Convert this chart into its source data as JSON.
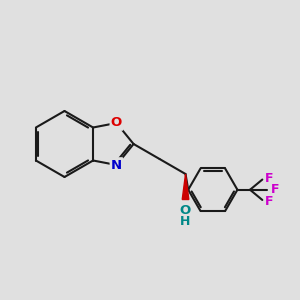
{
  "background_color": "#e0e0e0",
  "bond_color": "#1a1a1a",
  "oxygen_color": "#dd0000",
  "nitrogen_color": "#0000cc",
  "fluorine_color": "#cc00cc",
  "oh_o_color": "#008888",
  "wedge_color": "#cc0000",
  "line_width": 1.5,
  "font_size": 9.5,
  "dpi": 100,
  "fig_w": 3.0,
  "fig_h": 3.0,
  "xlim": [
    0,
    10
  ],
  "ylim": [
    0,
    10
  ]
}
